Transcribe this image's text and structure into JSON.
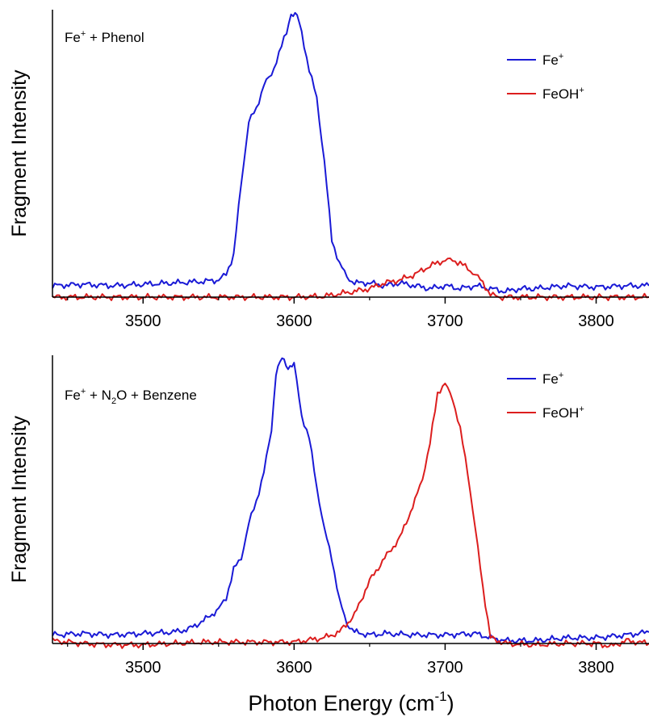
{
  "colors": {
    "fe": "#1a1ad6",
    "feoh": "#dc1e1e",
    "axis": "#000000"
  },
  "xlabel": {
    "main": "Photon Energy (cm",
    "sup": "-1",
    "close": ")"
  },
  "chart_data": [
    {
      "type": "line",
      "ylabel": "Fragment Intensity",
      "annotation": {
        "pre": "Fe",
        "sup": "+",
        "post": " + Phenol"
      },
      "legend_placement": "top-right",
      "xlim": [
        3440,
        3835
      ],
      "ylim": [
        0,
        1.0
      ],
      "xticks": [
        3500,
        3600,
        3700,
        3800
      ],
      "tick_labels": [
        "3500",
        "3600",
        "3700",
        "3800"
      ],
      "series": [
        {
          "name": "Fe+",
          "label": {
            "base": "Fe",
            "sup": "+"
          },
          "points": [
            [
              3440,
              0.04
            ],
            [
              3460,
              0.045
            ],
            [
              3480,
              0.04
            ],
            [
              3500,
              0.045
            ],
            [
              3520,
              0.05
            ],
            [
              3540,
              0.055
            ],
            [
              3550,
              0.06
            ],
            [
              3555,
              0.08
            ],
            [
              3560,
              0.15
            ],
            [
              3565,
              0.4
            ],
            [
              3570,
              0.62
            ],
            [
              3575,
              0.66
            ],
            [
              3580,
              0.75
            ],
            [
              3585,
              0.78
            ],
            [
              3590,
              0.86
            ],
            [
              3595,
              0.93
            ],
            [
              3598,
              1.0
            ],
            [
              3602,
              0.99
            ],
            [
              3605,
              0.93
            ],
            [
              3610,
              0.8
            ],
            [
              3615,
              0.7
            ],
            [
              3620,
              0.48
            ],
            [
              3625,
              0.2
            ],
            [
              3630,
              0.12
            ],
            [
              3635,
              0.07
            ],
            [
              3640,
              0.05
            ],
            [
              3650,
              0.05
            ],
            [
              3660,
              0.04
            ],
            [
              3670,
              0.05
            ],
            [
              3680,
              0.04
            ],
            [
              3690,
              0.03
            ],
            [
              3700,
              0.04
            ],
            [
              3710,
              0.03
            ],
            [
              3720,
              0.04
            ],
            [
              3730,
              0.03
            ],
            [
              3740,
              0.02
            ],
            [
              3750,
              0.03
            ],
            [
              3760,
              0.03
            ],
            [
              3780,
              0.04
            ],
            [
              3800,
              0.035
            ],
            [
              3820,
              0.04
            ],
            [
              3835,
              0.04
            ]
          ]
        },
        {
          "name": "FeOH+",
          "label": {
            "base": "FeOH",
            "sup": "+"
          },
          "points": [
            [
              3440,
              0.0
            ],
            [
              3500,
              0.0
            ],
            [
              3560,
              0.0
            ],
            [
              3600,
              0.0
            ],
            [
              3620,
              0.003
            ],
            [
              3640,
              0.02
            ],
            [
              3650,
              0.03
            ],
            [
              3660,
              0.05
            ],
            [
              3670,
              0.06
            ],
            [
              3680,
              0.08
            ],
            [
              3690,
              0.11
            ],
            [
              3695,
              0.12
            ],
            [
              3700,
              0.13
            ],
            [
              3705,
              0.13
            ],
            [
              3710,
              0.12
            ],
            [
              3715,
              0.1
            ],
            [
              3720,
              0.08
            ],
            [
              3725,
              0.05
            ],
            [
              3730,
              0.01
            ],
            [
              3735,
              0.0
            ],
            [
              3760,
              0.0
            ],
            [
              3835,
              0.0
            ]
          ]
        }
      ]
    },
    {
      "type": "line",
      "ylabel": "Fragment Intensity",
      "annotation": {
        "pre": "Fe",
        "sup": "+",
        "mid": " + N",
        "sub": "2",
        "post": "O + Benzene"
      },
      "legend_placement": "top-right",
      "xlim": [
        3440,
        3835
      ],
      "ylim": [
        0,
        1.0
      ],
      "xticks": [
        3500,
        3600,
        3700,
        3800
      ],
      "tick_labels": [
        "3500",
        "3600",
        "3700",
        "3800"
      ],
      "series": [
        {
          "name": "Fe+",
          "label": {
            "base": "Fe",
            "sup": "+"
          },
          "points": [
            [
              3440,
              0.03
            ],
            [
              3460,
              0.035
            ],
            [
              3480,
              0.03
            ],
            [
              3500,
              0.035
            ],
            [
              3520,
              0.04
            ],
            [
              3530,
              0.05
            ],
            [
              3540,
              0.08
            ],
            [
              3550,
              0.12
            ],
            [
              3555,
              0.16
            ],
            [
              3560,
              0.26
            ],
            [
              3565,
              0.3
            ],
            [
              3570,
              0.42
            ],
            [
              3575,
              0.5
            ],
            [
              3580,
              0.6
            ],
            [
              3585,
              0.75
            ],
            [
              3588,
              0.95
            ],
            [
              3592,
              1.0
            ],
            [
              3596,
              0.97
            ],
            [
              3600,
              0.98
            ],
            [
              3605,
              0.8
            ],
            [
              3610,
              0.72
            ],
            [
              3615,
              0.55
            ],
            [
              3620,
              0.4
            ],
            [
              3625,
              0.3
            ],
            [
              3630,
              0.15
            ],
            [
              3635,
              0.07
            ],
            [
              3640,
              0.04
            ],
            [
              3650,
              0.03
            ],
            [
              3660,
              0.035
            ],
            [
              3680,
              0.03
            ],
            [
              3700,
              0.03
            ],
            [
              3720,
              0.035
            ],
            [
              3730,
              0.02
            ],
            [
              3740,
              0.01
            ],
            [
              3760,
              0.01
            ],
            [
              3780,
              0.02
            ],
            [
              3800,
              0.02
            ],
            [
              3820,
              0.03
            ],
            [
              3835,
              0.04
            ]
          ]
        },
        {
          "name": "FeOH+",
          "label": {
            "base": "FeOH",
            "sup": "+"
          },
          "points": [
            [
              3440,
              0.01
            ],
            [
              3460,
              0.0
            ],
            [
              3480,
              -0.005
            ],
            [
              3500,
              -0.005
            ],
            [
              3520,
              0.0
            ],
            [
              3540,
              0.005
            ],
            [
              3560,
              0.005
            ],
            [
              3580,
              0.005
            ],
            [
              3600,
              0.005
            ],
            [
              3620,
              0.02
            ],
            [
              3630,
              0.04
            ],
            [
              3640,
              0.1
            ],
            [
              3650,
              0.22
            ],
            [
              3660,
              0.3
            ],
            [
              3670,
              0.37
            ],
            [
              3680,
              0.5
            ],
            [
              3685,
              0.58
            ],
            [
              3690,
              0.7
            ],
            [
              3695,
              0.88
            ],
            [
              3700,
              0.91
            ],
            [
              3705,
              0.86
            ],
            [
              3710,
              0.75
            ],
            [
              3715,
              0.6
            ],
            [
              3720,
              0.4
            ],
            [
              3725,
              0.2
            ],
            [
              3730,
              0.02
            ],
            [
              3740,
              0.0
            ],
            [
              3760,
              -0.005
            ],
            [
              3780,
              0.0
            ],
            [
              3800,
              0.0
            ],
            [
              3810,
              -0.01
            ],
            [
              3820,
              0.01
            ],
            [
              3835,
              0.0
            ]
          ]
        }
      ]
    }
  ]
}
